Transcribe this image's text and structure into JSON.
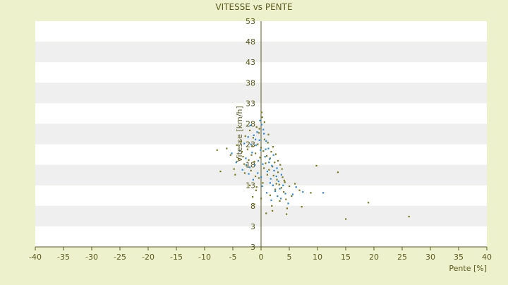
{
  "chart_data": {
    "type": "scatter",
    "title": "VITESSE vs PENTE",
    "xlabel": "Pente [%]",
    "ylabel": "Vitesse [km/h]",
    "xlim": [
      -40,
      40
    ],
    "ylim": [
      -2,
      53
    ],
    "x_ticks": [
      "-40",
      "-35",
      "-30",
      "-25",
      "-20",
      "-15",
      "-10",
      "-5",
      "0",
      "5",
      "10",
      "15",
      "20",
      "25",
      "30",
      "35",
      "40"
    ],
    "y_ticks": [
      "3",
      "3",
      "8",
      "13",
      "18",
      "23",
      "28",
      "33",
      "38",
      "43",
      "48",
      "53"
    ],
    "grid": "alternating horizontal bands",
    "colors": {
      "background": "#eef2cc",
      "plot_band_light": "#ffffff",
      "plot_band_dark": "#efefef",
      "axis": "#5a5a1e",
      "text": "#5a5a1e",
      "series_a": "#7a7a1a",
      "series_b": "#2a8ad4"
    },
    "series": [
      {
        "points": [
          [
            -7.8,
            21.6
          ],
          [
            -7.2,
            16.4
          ],
          [
            -6.1,
            22.0
          ],
          [
            -5.4,
            20.4
          ],
          [
            -4.8,
            17.0
          ],
          [
            -4.6,
            15.6
          ],
          [
            -4.3,
            22.8
          ],
          [
            -4.0,
            19.4
          ],
          [
            -3.6,
            23.6
          ],
          [
            -3.2,
            20.0
          ],
          [
            -3.0,
            18.2
          ],
          [
            -2.8,
            25.0
          ],
          [
            -2.6,
            17.8
          ],
          [
            -2.4,
            21.8
          ],
          [
            -2.2,
            19.2
          ],
          [
            -2.0,
            26.4
          ],
          [
            -1.8,
            16.6
          ],
          [
            -1.6,
            22.6
          ],
          [
            -1.4,
            24.6
          ],
          [
            -1.2,
            18.8
          ],
          [
            -1.0,
            20.8
          ],
          [
            -0.8,
            27.2
          ],
          [
            -0.6,
            23.0
          ],
          [
            -0.4,
            25.8
          ],
          [
            -0.2,
            19.8
          ],
          [
            0.0,
            22.2
          ],
          [
            0.2,
            29.6
          ],
          [
            0.4,
            21.4
          ],
          [
            0.6,
            24.2
          ],
          [
            0.8,
            18.4
          ],
          [
            1.0,
            20.2
          ],
          [
            1.2,
            23.4
          ],
          [
            1.4,
            16.8
          ],
          [
            1.6,
            19.6
          ],
          [
            1.8,
            21.2
          ],
          [
            2.0,
            17.6
          ],
          [
            2.2,
            15.4
          ],
          [
            2.4,
            18.6
          ],
          [
            2.6,
            20.6
          ],
          [
            2.8,
            14.4
          ],
          [
            3.0,
            16.2
          ],
          [
            3.2,
            13.2
          ],
          [
            3.4,
            18.0
          ],
          [
            3.6,
            12.4
          ],
          [
            3.8,
            15.0
          ],
          [
            4.0,
            11.4
          ],
          [
            4.2,
            13.8
          ],
          [
            4.4,
            9.6
          ],
          [
            4.6,
            7.4
          ],
          [
            5.0,
            12.8
          ],
          [
            5.4,
            10.4
          ],
          [
            6.0,
            13.4
          ],
          [
            6.8,
            11.8
          ],
          [
            7.2,
            7.8
          ],
          [
            8.8,
            11.2
          ],
          [
            9.8,
            17.8
          ],
          [
            13.6,
            16.2
          ],
          [
            15.0,
            4.8
          ],
          [
            19.0,
            8.8
          ],
          [
            26.2,
            5.4
          ],
          [
            -1.5,
            10.2
          ],
          [
            -1.2,
            8.4
          ],
          [
            -0.8,
            12.6
          ],
          [
            -0.4,
            14.8
          ],
          [
            0.3,
            13.6
          ],
          [
            0.9,
            6.2
          ],
          [
            1.6,
            10.6
          ],
          [
            2.0,
            6.8
          ],
          [
            -2.0,
            13.0
          ],
          [
            -1.0,
            15.2
          ],
          [
            0.5,
            17.2
          ],
          [
            1.1,
            15.6
          ],
          [
            2.5,
            12.0
          ],
          [
            3.3,
            9.2
          ],
          [
            4.5,
            6.0
          ],
          [
            -3.4,
            21.2
          ],
          [
            -2.9,
            16.0
          ],
          [
            0.1,
            30.8
          ],
          [
            0.6,
            28.4
          ],
          [
            -0.3,
            26.8
          ],
          [
            1.3,
            25.4
          ],
          [
            -1.7,
            20.4
          ],
          [
            2.1,
            22.4
          ],
          [
            3.0,
            19.0
          ],
          [
            3.7,
            17.0
          ],
          [
            4.1,
            14.2
          ],
          [
            -0.9,
            11.8
          ],
          [
            0.0,
            9.8
          ],
          [
            1.9,
            8.0
          ],
          [
            2.7,
            13.4
          ]
        ]
      },
      {
        "points": [
          [
            -5.2,
            20.8
          ],
          [
            -4.4,
            18.6
          ],
          [
            -3.8,
            21.4
          ],
          [
            -3.0,
            23.2
          ],
          [
            -2.7,
            19.6
          ],
          [
            -2.3,
            24.8
          ],
          [
            -2.0,
            17.4
          ],
          [
            -1.9,
            27.6
          ],
          [
            -1.6,
            21.0
          ],
          [
            -1.3,
            25.2
          ],
          [
            -1.1,
            18.0
          ],
          [
            -0.9,
            22.8
          ],
          [
            -0.7,
            26.0
          ],
          [
            -0.5,
            19.0
          ],
          [
            -0.3,
            24.0
          ],
          [
            -0.1,
            21.6
          ],
          [
            0.1,
            27.8
          ],
          [
            0.3,
            18.2
          ],
          [
            0.5,
            25.6
          ],
          [
            0.7,
            20.0
          ],
          [
            0.9,
            23.8
          ],
          [
            1.1,
            16.4
          ],
          [
            1.3,
            22.0
          ],
          [
            1.5,
            19.4
          ],
          [
            1.7,
            14.6
          ],
          [
            1.9,
            17.8
          ],
          [
            2.1,
            13.0
          ],
          [
            2.3,
            16.6
          ],
          [
            2.5,
            11.6
          ],
          [
            2.7,
            15.2
          ],
          [
            2.9,
            10.4
          ],
          [
            3.1,
            14.0
          ],
          [
            3.3,
            12.2
          ],
          [
            3.5,
            9.8
          ],
          [
            3.9,
            13.0
          ],
          [
            4.3,
            11.0
          ],
          [
            4.8,
            8.6
          ],
          [
            5.6,
            10.8
          ],
          [
            6.2,
            12.6
          ],
          [
            7.4,
            11.4
          ],
          [
            11.0,
            11.2
          ],
          [
            -1.4,
            14.4
          ],
          [
            -0.6,
            16.0
          ],
          [
            0.2,
            12.8
          ],
          [
            1.0,
            11.2
          ],
          [
            1.8,
            9.4
          ],
          [
            -2.2,
            15.8
          ],
          [
            -1.8,
            23.0
          ],
          [
            -0.2,
            28.8
          ],
          [
            0.4,
            26.6
          ],
          [
            -1.0,
            24.2
          ],
          [
            0.8,
            21.8
          ],
          [
            1.4,
            18.6
          ],
          [
            2.2,
            20.4
          ],
          [
            2.8,
            17.2
          ],
          [
            3.6,
            15.6
          ],
          [
            -2.6,
            18.0
          ],
          [
            -3.3,
            16.8
          ],
          [
            0.0,
            15.0
          ],
          [
            1.6,
            13.6
          ]
        ]
      }
    ]
  }
}
